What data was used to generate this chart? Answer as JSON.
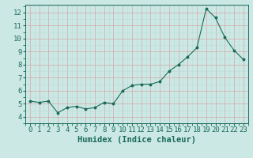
{
  "x": [
    0,
    1,
    2,
    3,
    4,
    5,
    6,
    7,
    8,
    9,
    10,
    11,
    12,
    13,
    14,
    15,
    16,
    17,
    18,
    19,
    20,
    21,
    22,
    23
  ],
  "y": [
    5.2,
    5.1,
    5.2,
    4.3,
    4.7,
    4.8,
    4.6,
    4.7,
    5.1,
    5.0,
    6.0,
    6.4,
    6.5,
    6.5,
    6.7,
    7.5,
    8.0,
    8.6,
    9.3,
    12.3,
    11.6,
    10.1,
    9.1,
    8.4
  ],
  "line_color": "#1a6b5a",
  "marker_color": "#1a6b5a",
  "bg_color": "#cce8e4",
  "grid_color_major": "#d4a8a8",
  "grid_color_minor": "#b8ddd8",
  "xlabel": "Humidex (Indice chaleur)",
  "ylim": [
    3.5,
    12.6
  ],
  "xlim": [
    -0.5,
    23.5
  ],
  "yticks": [
    4,
    5,
    6,
    7,
    8,
    9,
    10,
    11,
    12
  ],
  "xticks": [
    0,
    1,
    2,
    3,
    4,
    5,
    6,
    7,
    8,
    9,
    10,
    11,
    12,
    13,
    14,
    15,
    16,
    17,
    18,
    19,
    20,
    21,
    22,
    23
  ],
  "label_color": "#1a6b5a",
  "tick_color": "#1a6b5a",
  "font_size_label": 7.5,
  "font_size_tick": 6.5
}
